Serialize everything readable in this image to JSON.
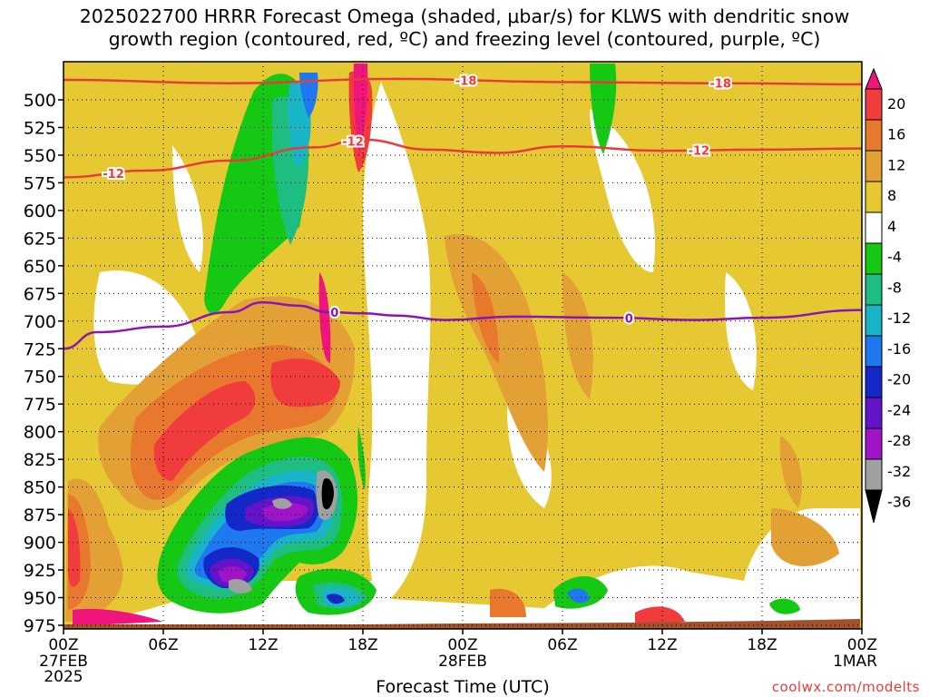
{
  "title_line1": "2025022700 HRRR Forecast Omega (shaded, μbar/s) for KLWS with dendritic snow",
  "title_line2": "growth region (contoured, red, ºC) and freezing level (contoured, purple, ºC)",
  "xlabel": "Forecast Time (UTC)",
  "credit": "coolwx.com/modelts",
  "chart_data": {
    "type": "heatmap",
    "title": "2025022700 HRRR Forecast Omega (shaded, μbar/s) for KLWS with dendritic snow growth region (contoured, red, ºC) and freezing level (contoured, purple, ºC)",
    "xlabel": "Forecast Time (UTC)",
    "ylabel": "",
    "x_range_hours": [
      0,
      48
    ],
    "x_ticks": [
      {
        "hour": 0,
        "label": "00Z",
        "sub": [
          "27FEB",
          "2025"
        ]
      },
      {
        "hour": 6,
        "label": "06Z",
        "sub": []
      },
      {
        "hour": 12,
        "label": "12Z",
        "sub": []
      },
      {
        "hour": 18,
        "label": "18Z",
        "sub": []
      },
      {
        "hour": 24,
        "label": "00Z",
        "sub": [
          "28FEB"
        ]
      },
      {
        "hour": 30,
        "label": "06Z",
        "sub": []
      },
      {
        "hour": 36,
        "label": "12Z",
        "sub": []
      },
      {
        "hour": 42,
        "label": "18Z",
        "sub": []
      },
      {
        "hour": 48,
        "label": "00Z",
        "sub": [
          "1MAR"
        ]
      }
    ],
    "y_ticks": [
      500,
      525,
      550,
      575,
      600,
      625,
      650,
      675,
      700,
      725,
      750,
      775,
      800,
      825,
      850,
      875,
      900,
      925,
      950,
      975
    ],
    "y_range_hpa": [
      482,
      992
    ],
    "grid": true,
    "colorbar": {
      "labels": [
        "20",
        "16",
        "12",
        "8",
        "4",
        "-4",
        "-8",
        "-12",
        "-16",
        "-20",
        "-24",
        "-28",
        "-32",
        "-36"
      ],
      "colors": [
        "#f0147d",
        "#f03c3c",
        "#e8782d",
        "#e3a035",
        "#e6c832",
        "#ffffff",
        "#14c814",
        "#1ebe82",
        "#19b4c8",
        "#1e78f0",
        "#1428c8",
        "#6414c8",
        "#a014c8",
        "#a0a0a0",
        "#000000"
      ]
    },
    "contours": [
      {
        "name": "-18",
        "color": "#e83c3c",
        "label_hours": [
          24.2,
          39.5
        ],
        "points": [
          [
            0,
            482
          ],
          [
            10,
            485
          ],
          [
            20,
            481
          ],
          [
            30,
            484
          ],
          [
            40,
            485
          ],
          [
            48,
            486
          ]
        ]
      },
      {
        "name": "-12",
        "color": "#e83c3c",
        "label_hours": [
          3.0,
          17.4,
          38.2
        ],
        "points": [
          [
            0,
            570
          ],
          [
            5,
            564
          ],
          [
            10,
            555
          ],
          [
            15,
            543
          ],
          [
            18,
            536
          ],
          [
            22,
            545
          ],
          [
            26,
            548
          ],
          [
            30,
            542
          ],
          [
            36,
            546
          ],
          [
            42,
            545
          ],
          [
            48,
            544
          ]
        ]
      },
      {
        "name": "0",
        "color": "#8c14b4",
        "label_hours": [
          16.3,
          34.0
        ],
        "points": [
          [
            0,
            725
          ],
          [
            2,
            710
          ],
          [
            6,
            705
          ],
          [
            10,
            692
          ],
          [
            12,
            683
          ],
          [
            14,
            686
          ],
          [
            16,
            692
          ],
          [
            18,
            693
          ],
          [
            20,
            695
          ],
          [
            23,
            699
          ],
          [
            27,
            696
          ],
          [
            33,
            697
          ],
          [
            38,
            699
          ],
          [
            42,
            697
          ],
          [
            48,
            690
          ]
        ]
      }
    ]
  }
}
